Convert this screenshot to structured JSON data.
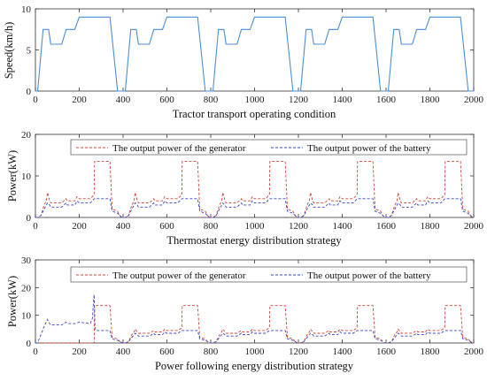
{
  "chart_data": [
    {
      "type": "line",
      "id": "speed",
      "xlabel": "Tractor transport operating condition",
      "ylabel": "Speed(km/h)",
      "xlim": [
        0,
        2000
      ],
      "ylim": [
        0,
        10
      ],
      "xticks": [
        0,
        200,
        400,
        600,
        800,
        1000,
        1200,
        1400,
        1600,
        1800,
        2000
      ],
      "yticks": [
        0,
        5,
        10
      ],
      "legend": "none",
      "colors": {
        "speed": "#4a8fd4"
      },
      "series": [
        {
          "key": "speed",
          "period": 400,
          "x": [
            0,
            10,
            35,
            60,
            70,
            120,
            140,
            180,
            200,
            270,
            340,
            375,
            395,
            400
          ],
          "y": [
            0,
            0,
            7.5,
            7.5,
            5.7,
            5.7,
            7.5,
            7.5,
            9.0,
            9.0,
            9.0,
            0,
            0,
            0
          ]
        }
      ]
    },
    {
      "type": "line",
      "id": "thermostat",
      "xlabel": "Thermostat energy distribution strategy",
      "ylabel": "Power(kW)",
      "xlim": [
        0,
        2000
      ],
      "ylim": [
        0,
        20
      ],
      "xticks": [
        0,
        200,
        400,
        600,
        800,
        1000,
        1200,
        1400,
        1600,
        1800,
        2000
      ],
      "yticks": [
        0,
        10,
        20
      ],
      "legend": "top",
      "colors": {
        "gen": "#d0453a",
        "bat": "#3a45c8"
      },
      "series": [
        {
          "key": "gen",
          "name": "The output power of the generator",
          "period": 400,
          "x": [
            0,
            10,
            25,
            40,
            50,
            55,
            65,
            70,
            120,
            140,
            145,
            180,
            190,
            200,
            250,
            268,
            270,
            340,
            350,
            375,
            385,
            395,
            400
          ],
          "y": [
            0,
            0,
            0.5,
            3,
            4,
            6,
            4,
            3.5,
            3.5,
            4.5,
            4,
            4,
            5,
            4.5,
            4.5,
            5.5,
            13.5,
            13.5,
            2,
            1.5,
            0.5,
            0,
            0
          ]
        },
        {
          "key": "bat",
          "name": "The output power of the battery",
          "period": 400,
          "x": [
            0,
            10,
            25,
            40,
            50,
            55,
            65,
            70,
            120,
            140,
            145,
            180,
            190,
            200,
            250,
            268,
            270,
            340,
            350,
            375,
            385,
            395,
            400
          ],
          "y": [
            0,
            0,
            0.5,
            2,
            3,
            3.5,
            3,
            2.5,
            2.5,
            3.5,
            3,
            3,
            4,
            3.5,
            3.5,
            4.5,
            4.5,
            4.5,
            1.5,
            1,
            0.5,
            0,
            0
          ]
        }
      ]
    },
    {
      "type": "line",
      "id": "following",
      "xlabel": "Power following energy distribution strategy",
      "ylabel": "Power(kW)",
      "xlim": [
        0,
        2000
      ],
      "ylim": [
        0,
        30
      ],
      "xticks": [
        0,
        200,
        400,
        600,
        800,
        1000,
        1200,
        1400,
        1600,
        1800,
        2000
      ],
      "yticks": [
        0,
        10,
        20,
        30
      ],
      "legend": "top",
      "colors": {
        "gen": "#d0453a",
        "bat": "#3a45c8"
      },
      "series": [
        {
          "key": "gen",
          "name": "The output power of the generator",
          "first": {
            "x": [
              0,
              268,
              270,
              340,
              350,
              375,
              385,
              400
            ],
            "y": [
              0,
              0,
              13.5,
              13.5,
              2,
              1.5,
              0.5,
              0
            ]
          },
          "period": 400,
          "x": [
            0,
            10,
            25,
            40,
            50,
            55,
            65,
            70,
            120,
            140,
            145,
            180,
            190,
            200,
            250,
            268,
            270,
            340,
            350,
            375,
            385,
            395,
            400
          ],
          "y": [
            0,
            0,
            0.5,
            3,
            4,
            5,
            4,
            3.5,
            3.5,
            4.5,
            4,
            4,
            5,
            4.5,
            4.5,
            5.5,
            13.5,
            13.5,
            2,
            1.5,
            0.5,
            0,
            0
          ]
        },
        {
          "key": "bat",
          "name": "The output power of the battery",
          "first": {
            "x": [
              0,
              10,
              25,
              40,
              55,
              65,
              70,
              120,
              140,
              150,
              180,
              200,
              250,
              260,
              265,
              268,
              272,
              280,
              340,
              350,
              375,
              385,
              400
            ],
            "y": [
              0,
              0,
              3,
              6,
              8.5,
              7,
              6.5,
              6.5,
              7.5,
              7,
              7,
              7.5,
              7,
              9,
              15,
              17.5,
              5,
              4.5,
              4.5,
              1.5,
              1,
              0.5,
              0
            ]
          },
          "period": 400,
          "x": [
            0,
            10,
            25,
            40,
            50,
            55,
            65,
            70,
            120,
            140,
            145,
            180,
            190,
            200,
            250,
            268,
            270,
            340,
            350,
            375,
            385,
            395,
            400
          ],
          "y": [
            0,
            0,
            0.5,
            2,
            3,
            3.5,
            3,
            2.5,
            2.5,
            3.5,
            3,
            3,
            4,
            3.5,
            3.5,
            4.5,
            4.5,
            4.5,
            1.5,
            1,
            0.5,
            0,
            0
          ]
        }
      ]
    }
  ]
}
